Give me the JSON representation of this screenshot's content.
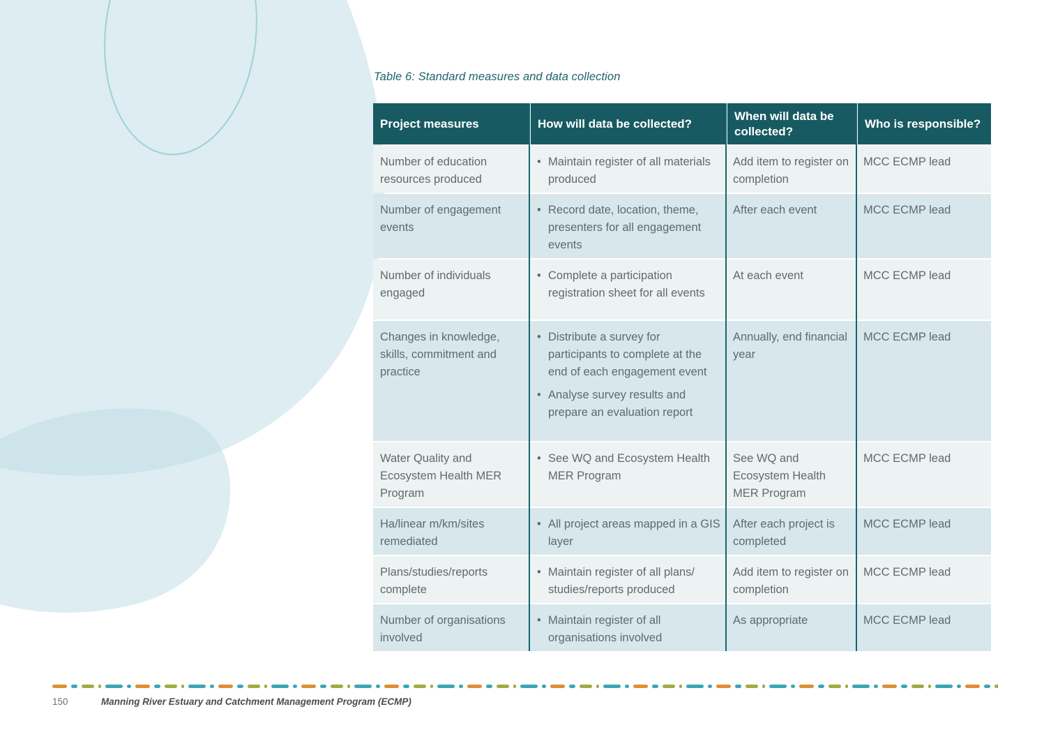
{
  "caption": "Table 6: Standard measures and data collection",
  "table": {
    "columns": [
      "Project measures",
      "How will data be collected?",
      "When will data be collected?",
      "Who is responsible?"
    ],
    "rows": [
      {
        "measure": "Number of education resources produced",
        "how": [
          "Maintain register of all materials produced"
        ],
        "when": "Add item to register on completion",
        "who": "MCC ECMP lead"
      },
      {
        "measure": "Number of engagement events",
        "how": [
          "Record date, location, theme, presenters for all engagement events"
        ],
        "when": "After each event",
        "who": "MCC ECMP lead"
      },
      {
        "measure": "Number of individuals engaged",
        "how": [
          "Complete a participation registration sheet for all events"
        ],
        "when": "At each event",
        "who": "MCC ECMP lead"
      },
      {
        "measure": "Changes in knowledge, skills, commitment and practice",
        "how": [
          "Distribute a survey for participants to complete at the end of each engagement event",
          "Analyse survey results and prepare an evaluation report"
        ],
        "when": "Annually, end financial year",
        "who": "MCC ECMP lead"
      },
      {
        "measure": "Water Quality and Ecosystem Health MER Program",
        "how": [
          "See WQ and Ecosystem Health MER Program"
        ],
        "when": "See WQ and Ecosystem Health MER Program",
        "who": "MCC ECMP lead"
      },
      {
        "measure": "Ha/linear m/km/sites remediated",
        "how": [
          "All project areas mapped in a GIS layer"
        ],
        "when": "After each project is completed",
        "who": "MCC ECMP lead"
      },
      {
        "measure": "Plans/studies/reports complete",
        "how": [
          "Maintain register of all plans/ studies/reports produced"
        ],
        "when": "Add item to register on completion",
        "who": "MCC ECMP lead"
      },
      {
        "measure": "Number of organisations involved",
        "how": [
          "Maintain register of all organisations involved"
        ],
        "when": "As appropriate",
        "who": "MCC ECMP lead"
      }
    ]
  },
  "footer": {
    "page_number": "150",
    "title": "Manning River Estuary and Catchment Management Program (ECMP)",
    "divider_colors": {
      "orange": "#dd8f35",
      "teal": "#3aa7b3",
      "olive": "#a3aa42"
    }
  },
  "colors": {
    "header_bg": "#185a62",
    "header_text": "#ffffff",
    "row_light": "#edf3f2",
    "row_alt": "#d8e7eb",
    "column_line": "#17646c",
    "body_text": "#5d6a70",
    "caption_text": "#1e626d",
    "blob_fill": "#bbdbe3",
    "ellipse_stroke": "#9fd0d9"
  }
}
